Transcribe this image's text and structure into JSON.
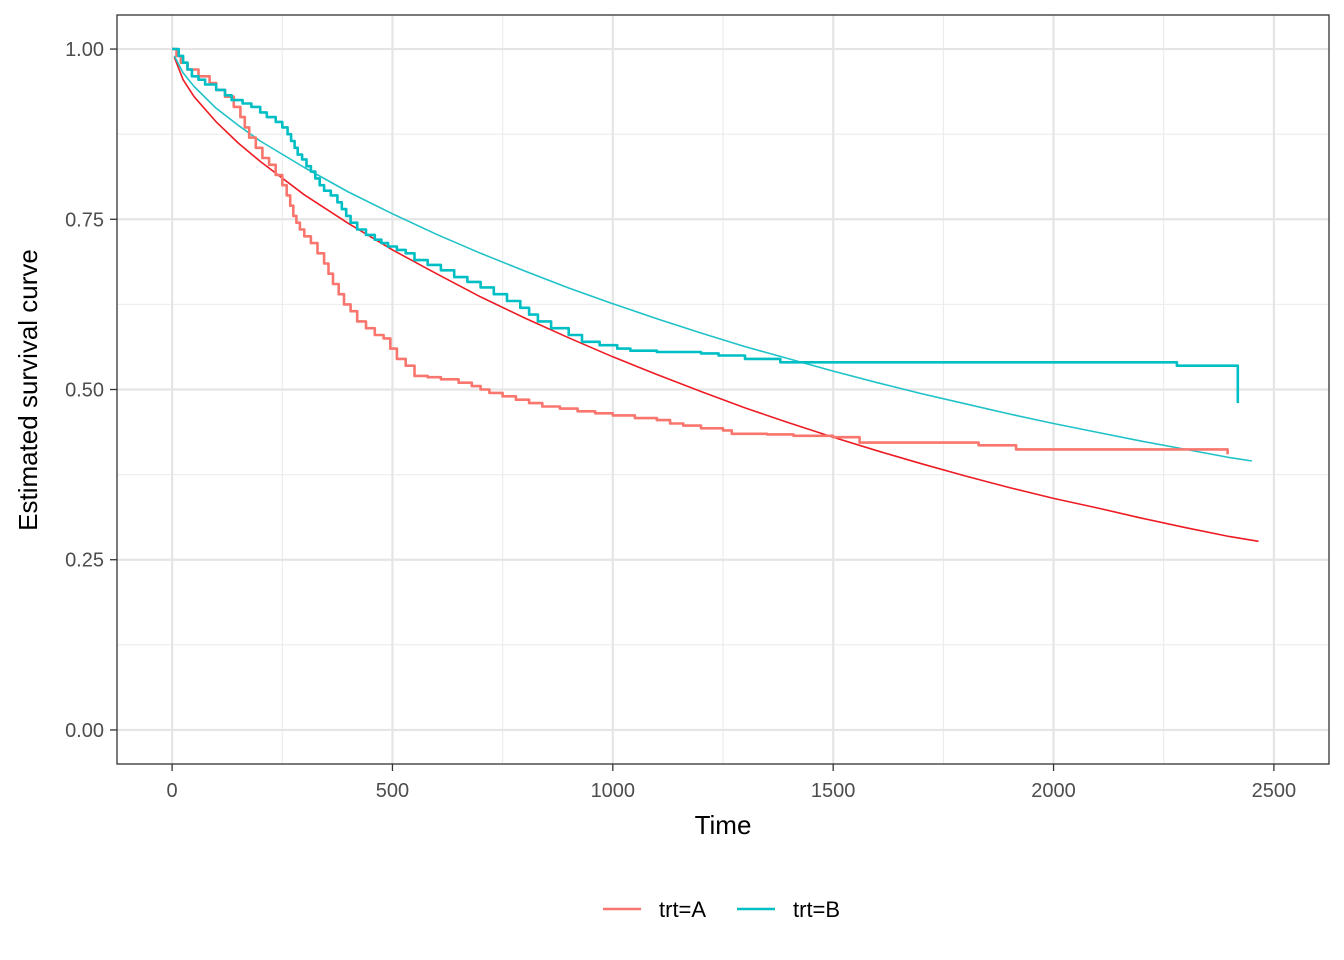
{
  "chart_data": {
    "type": "line",
    "xlabel": "Time",
    "ylabel": "Estimated survival curve",
    "xlim": [
      -125,
      2625
    ],
    "ylim": [
      -0.05,
      1.05
    ],
    "x_ticks": [
      0,
      500,
      1000,
      1500,
      2000,
      2500
    ],
    "x_tick_labels": [
      "0",
      "500",
      "1000",
      "1500",
      "2000",
      "2500"
    ],
    "y_ticks": [
      0,
      0.25,
      0.5,
      0.75,
      1
    ],
    "y_tick_labels": [
      "0.00",
      "0.25",
      "0.50",
      "0.75",
      "1.00"
    ],
    "grid": true,
    "legend_position": "bottom",
    "series": [
      {
        "name": "trt=A",
        "color": "#F8766D",
        "style": "step",
        "points": [
          [
            0,
            1.0
          ],
          [
            10,
            0.99
          ],
          [
            20,
            0.98
          ],
          [
            35,
            0.97
          ],
          [
            60,
            0.96
          ],
          [
            85,
            0.95
          ],
          [
            100,
            0.94
          ],
          [
            120,
            0.93
          ],
          [
            140,
            0.915
          ],
          [
            155,
            0.9
          ],
          [
            165,
            0.885
          ],
          [
            175,
            0.87
          ],
          [
            190,
            0.855
          ],
          [
            205,
            0.84
          ],
          [
            220,
            0.83
          ],
          [
            235,
            0.815
          ],
          [
            250,
            0.8
          ],
          [
            260,
            0.785
          ],
          [
            268,
            0.77
          ],
          [
            275,
            0.755
          ],
          [
            282,
            0.745
          ],
          [
            290,
            0.735
          ],
          [
            300,
            0.725
          ],
          [
            315,
            0.715
          ],
          [
            330,
            0.7
          ],
          [
            345,
            0.685
          ],
          [
            355,
            0.67
          ],
          [
            365,
            0.655
          ],
          [
            378,
            0.64
          ],
          [
            390,
            0.625
          ],
          [
            405,
            0.615
          ],
          [
            420,
            0.6
          ],
          [
            440,
            0.59
          ],
          [
            460,
            0.58
          ],
          [
            480,
            0.575
          ],
          [
            495,
            0.56
          ],
          [
            510,
            0.545
          ],
          [
            530,
            0.535
          ],
          [
            550,
            0.52
          ],
          [
            580,
            0.518
          ],
          [
            610,
            0.515
          ],
          [
            650,
            0.51
          ],
          [
            680,
            0.505
          ],
          [
            700,
            0.5
          ],
          [
            720,
            0.495
          ],
          [
            750,
            0.49
          ],
          [
            780,
            0.485
          ],
          [
            810,
            0.48
          ],
          [
            840,
            0.475
          ],
          [
            880,
            0.472
          ],
          [
            920,
            0.468
          ],
          [
            960,
            0.465
          ],
          [
            1000,
            0.462
          ],
          [
            1050,
            0.458
          ],
          [
            1100,
            0.455
          ],
          [
            1130,
            0.45
          ],
          [
            1160,
            0.447
          ],
          [
            1200,
            0.443
          ],
          [
            1250,
            0.44
          ],
          [
            1270,
            0.435
          ],
          [
            1350,
            0.434
          ],
          [
            1410,
            0.432
          ],
          [
            1500,
            0.43
          ],
          [
            1560,
            0.422
          ],
          [
            1830,
            0.418
          ],
          [
            1915,
            0.412
          ],
          [
            2395,
            0.405
          ]
        ]
      },
      {
        "name": "trt=B",
        "color": "#00BFC4",
        "style": "step",
        "points": [
          [
            0,
            1.0
          ],
          [
            15,
            0.99
          ],
          [
            25,
            0.98
          ],
          [
            35,
            0.97
          ],
          [
            45,
            0.96
          ],
          [
            60,
            0.955
          ],
          [
            75,
            0.948
          ],
          [
            100,
            0.94
          ],
          [
            120,
            0.932
          ],
          [
            135,
            0.925
          ],
          [
            160,
            0.92
          ],
          [
            180,
            0.915
          ],
          [
            200,
            0.907
          ],
          [
            215,
            0.9
          ],
          [
            235,
            0.893
          ],
          [
            250,
            0.885
          ],
          [
            262,
            0.875
          ],
          [
            270,
            0.865
          ],
          [
            278,
            0.855
          ],
          [
            285,
            0.845
          ],
          [
            295,
            0.838
          ],
          [
            305,
            0.828
          ],
          [
            315,
            0.82
          ],
          [
            325,
            0.81
          ],
          [
            335,
            0.8
          ],
          [
            345,
            0.792
          ],
          [
            360,
            0.785
          ],
          [
            375,
            0.775
          ],
          [
            385,
            0.765
          ],
          [
            395,
            0.755
          ],
          [
            405,
            0.745
          ],
          [
            420,
            0.735
          ],
          [
            440,
            0.727
          ],
          [
            460,
            0.72
          ],
          [
            475,
            0.715
          ],
          [
            490,
            0.71
          ],
          [
            510,
            0.705
          ],
          [
            530,
            0.7
          ],
          [
            550,
            0.69
          ],
          [
            580,
            0.683
          ],
          [
            610,
            0.675
          ],
          [
            640,
            0.665
          ],
          [
            670,
            0.658
          ],
          [
            700,
            0.65
          ],
          [
            730,
            0.64
          ],
          [
            760,
            0.63
          ],
          [
            790,
            0.62
          ],
          [
            810,
            0.61
          ],
          [
            830,
            0.6
          ],
          [
            860,
            0.59
          ],
          [
            900,
            0.58
          ],
          [
            930,
            0.57
          ],
          [
            970,
            0.565
          ],
          [
            1010,
            0.56
          ],
          [
            1040,
            0.557
          ],
          [
            1100,
            0.555
          ],
          [
            1200,
            0.553
          ],
          [
            1240,
            0.55
          ],
          [
            1300,
            0.545
          ],
          [
            1380,
            0.54
          ],
          [
            2280,
            0.535
          ],
          [
            2418,
            0.48
          ]
        ]
      },
      {
        "name": "",
        "color": "#ED1C24",
        "style": "smooth",
        "points": [
          [
            5,
            0.988
          ],
          [
            25,
            0.955
          ],
          [
            50,
            0.93
          ],
          [
            100,
            0.893
          ],
          [
            150,
            0.862
          ],
          [
            200,
            0.835
          ],
          [
            300,
            0.786
          ],
          [
            400,
            0.744
          ],
          [
            500,
            0.705
          ],
          [
            600,
            0.67
          ],
          [
            700,
            0.636
          ],
          [
            800,
            0.605
          ],
          [
            900,
            0.576
          ],
          [
            1000,
            0.548
          ],
          [
            1100,
            0.522
          ],
          [
            1200,
            0.497
          ],
          [
            1300,
            0.473
          ],
          [
            1400,
            0.451
          ],
          [
            1500,
            0.43
          ],
          [
            1600,
            0.41
          ],
          [
            1700,
            0.391
          ],
          [
            1800,
            0.373
          ],
          [
            1900,
            0.356
          ],
          [
            2000,
            0.34
          ],
          [
            2100,
            0.326
          ],
          [
            2200,
            0.311
          ],
          [
            2300,
            0.297
          ],
          [
            2400,
            0.284
          ],
          [
            2465,
            0.277
          ]
        ]
      },
      {
        "name": "",
        "color": "#1FC2C8",
        "style": "smooth",
        "points": [
          [
            5,
            0.99
          ],
          [
            25,
            0.965
          ],
          [
            50,
            0.945
          ],
          [
            100,
            0.913
          ],
          [
            150,
            0.888
          ],
          [
            200,
            0.865
          ],
          [
            300,
            0.826
          ],
          [
            400,
            0.79
          ],
          [
            500,
            0.758
          ],
          [
            600,
            0.728
          ],
          [
            700,
            0.7
          ],
          [
            800,
            0.674
          ],
          [
            900,
            0.649
          ],
          [
            1000,
            0.626
          ],
          [
            1100,
            0.604
          ],
          [
            1200,
            0.583
          ],
          [
            1300,
            0.563
          ],
          [
            1400,
            0.545
          ],
          [
            1500,
            0.527
          ],
          [
            1600,
            0.51
          ],
          [
            1700,
            0.494
          ],
          [
            1800,
            0.479
          ],
          [
            1900,
            0.464
          ],
          [
            2000,
            0.45
          ],
          [
            2100,
            0.437
          ],
          [
            2200,
            0.424
          ],
          [
            2300,
            0.412
          ],
          [
            2400,
            0.4
          ],
          [
            2450,
            0.395
          ]
        ]
      }
    ]
  }
}
